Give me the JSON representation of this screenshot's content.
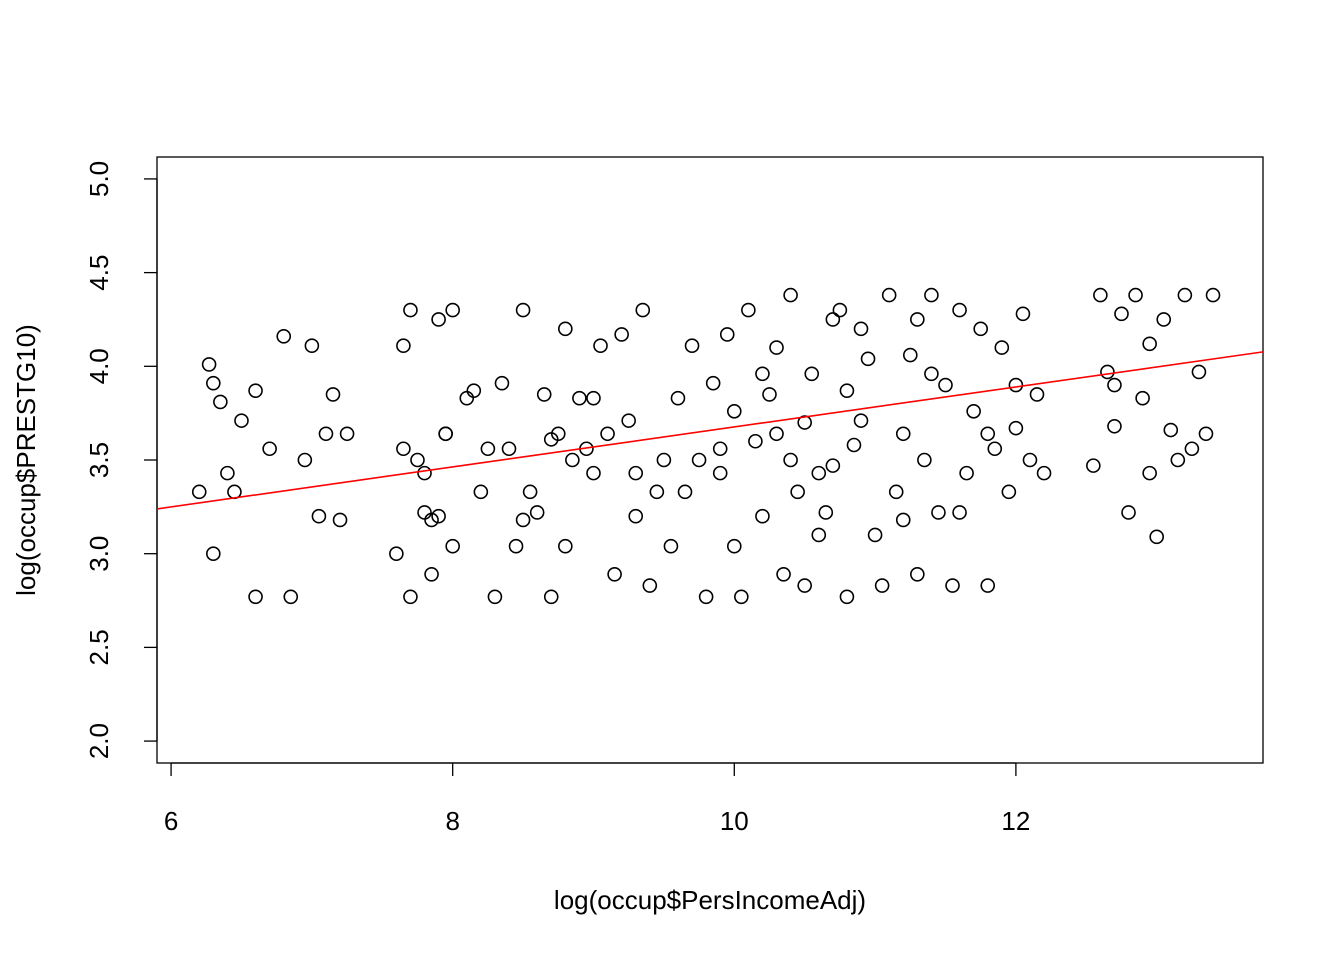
{
  "chart_data": {
    "type": "scatter",
    "x_label": "log(occup$PersIncomeAdj)",
    "y_label": "log(occup$PRESTG10)",
    "color": "#000000",
    "xlim": [
      5.9,
      13.755
    ],
    "ylim": [
      1.883,
      5.117
    ],
    "xticks": [
      6,
      8,
      10,
      12
    ],
    "yticks": [
      {
        "value": 2,
        "label": "2.0"
      },
      2.5,
      {
        "value": 3,
        "label": "3.0"
      },
      3.5,
      {
        "value": 4,
        "label": "4.0"
      },
      4.5,
      {
        "value": 5,
        "label": "5.0"
      }
    ],
    "x": [
      6.2,
      6.27,
      6.3,
      6.35,
      6.4,
      6.5,
      6.6,
      6.7,
      6.85,
      7.0,
      7.05,
      7.1,
      7.15,
      7.2,
      6.3,
      6.45,
      6.8,
      6.95,
      6.6,
      7.25,
      7.6,
      7.65,
      7.7,
      7.75,
      7.8,
      7.85,
      7.9,
      7.95,
      8.0,
      8.1,
      8.2,
      8.25,
      7.7,
      7.8,
      7.9,
      8.0,
      7.65,
      7.85,
      8.15,
      7.95,
      8.3,
      8.4,
      8.5,
      8.6,
      8.7,
      8.8,
      8.9,
      9.0,
      9.1,
      9.2,
      9.3,
      9.4,
      9.5,
      8.35,
      8.55,
      8.75,
      8.95,
      9.15,
      9.35,
      8.45,
      8.65,
      8.85,
      9.05,
      9.25,
      9.45,
      8.5,
      8.7,
      9.0,
      9.3,
      8.8,
      9.6,
      9.7,
      9.8,
      9.9,
      10.0,
      10.1,
      10.2,
      10.3,
      10.4,
      10.5,
      10.6,
      10.7,
      10.8,
      10.9,
      11.0,
      9.65,
      9.75,
      9.85,
      9.95,
      10.05,
      10.15,
      10.25,
      10.35,
      10.45,
      10.55,
      10.65,
      10.75,
      10.85,
      10.95,
      9.55,
      9.9,
      10.0,
      10.2,
      10.4,
      10.6,
      10.8,
      10.3,
      10.5,
      10.7,
      10.9,
      11.05,
      11.1,
      11.15,
      11.2,
      11.25,
      11.3,
      11.35,
      11.4,
      11.45,
      11.5,
      11.55,
      11.6,
      11.65,
      11.7,
      11.75,
      11.8,
      11.85,
      11.9,
      11.95,
      12.0,
      12.05,
      12.1,
      12.15,
      12.2,
      11.2,
      11.4,
      11.6,
      11.8,
      12.0,
      11.3,
      12.55,
      12.6,
      12.65,
      12.7,
      12.75,
      12.8,
      12.85,
      12.9,
      12.95,
      13.0,
      13.05,
      13.1,
      13.15,
      13.2,
      13.25,
      13.3,
      13.35,
      13.4,
      12.7,
      12.95
    ],
    "values": [
      3.33,
      4.01,
      3.0,
      3.81,
      3.43,
      3.71,
      2.77,
      3.56,
      2.77,
      4.11,
      3.2,
      3.64,
      3.85,
      3.18,
      3.91,
      3.33,
      4.16,
      3.5,
      3.87,
      3.64,
      3.0,
      4.11,
      2.77,
      3.5,
      3.22,
      2.89,
      4.25,
      3.64,
      3.04,
      3.83,
      3.33,
      3.56,
      4.3,
      3.43,
      3.2,
      4.3,
      3.56,
      3.18,
      3.87,
      3.64,
      2.77,
      3.56,
      4.3,
      3.22,
      2.77,
      3.04,
      3.83,
      3.43,
      3.64,
      4.17,
      3.2,
      2.83,
      3.5,
      3.91,
      3.33,
      3.64,
      3.56,
      2.89,
      4.3,
      3.04,
      3.85,
      3.5,
      4.11,
      3.71,
      3.33,
      3.18,
      3.61,
      3.83,
      3.43,
      4.2,
      3.83,
      4.11,
      2.77,
      3.56,
      3.04,
      4.3,
      3.2,
      3.64,
      4.38,
      2.83,
      3.43,
      4.25,
      2.77,
      3.71,
      3.1,
      3.33,
      3.5,
      3.91,
      4.17,
      2.77,
      3.6,
      3.85,
      2.89,
      3.33,
      3.96,
      3.22,
      4.3,
      3.58,
      4.04,
      3.04,
      3.43,
      3.76,
      3.96,
      3.5,
      3.1,
      3.87,
      4.1,
      3.7,
      3.47,
      4.2,
      2.83,
      4.38,
      3.33,
      3.64,
      4.06,
      2.89,
      3.5,
      4.38,
      3.22,
      3.9,
      2.83,
      4.3,
      3.43,
      3.76,
      4.2,
      2.83,
      3.56,
      4.1,
      3.33,
      3.67,
      4.28,
      3.5,
      3.85,
      3.43,
      3.18,
      3.96,
      3.22,
      3.64,
      3.9,
      4.25,
      3.47,
      4.38,
      3.97,
      3.68,
      4.28,
      3.22,
      4.38,
      3.83,
      3.43,
      3.09,
      4.25,
      3.66,
      3.5,
      4.38,
      3.56,
      3.97,
      3.64,
      4.38,
      3.9,
      4.12
    ],
    "fit": {
      "x": [
        5.9,
        13.755
      ],
      "values": [
        3.239,
        4.077
      ],
      "color": "#ff0000"
    }
  }
}
